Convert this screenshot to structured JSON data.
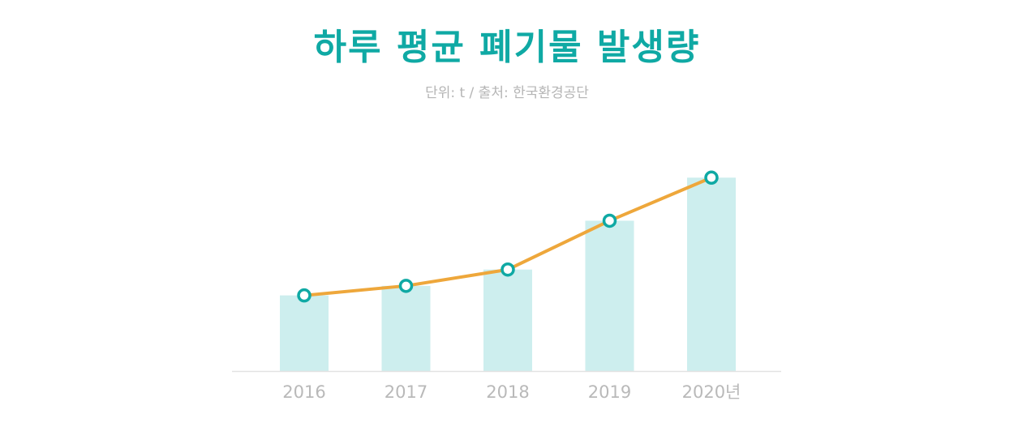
{
  "chart_data": {
    "type": "bar",
    "title": "하루 평균 폐기물 발생량",
    "subtitle": "단위: t / 출처: 한국환경공단",
    "categories": [
      "2016",
      "2017",
      "2018",
      "2019",
      "2020년"
    ],
    "series": [
      {
        "type": "bar",
        "values": [
          419,
          429,
          446,
          497,
          542
        ]
      },
      {
        "type": "line",
        "values": [
          419,
          429,
          446,
          497,
          542
        ]
      }
    ],
    "ylim": [
      340,
      560
    ],
    "grid": false,
    "legend": "none",
    "colors": {
      "title": "#0fa9a4",
      "bar": "#cdeeee",
      "line": "#eea73b",
      "marker_stroke": "#0fa9a4",
      "marker_fill": "#ffffff",
      "axis": "#e2e2e2",
      "tick_label": "#b9b9b9",
      "subtitle": "#b5b5b5"
    }
  }
}
